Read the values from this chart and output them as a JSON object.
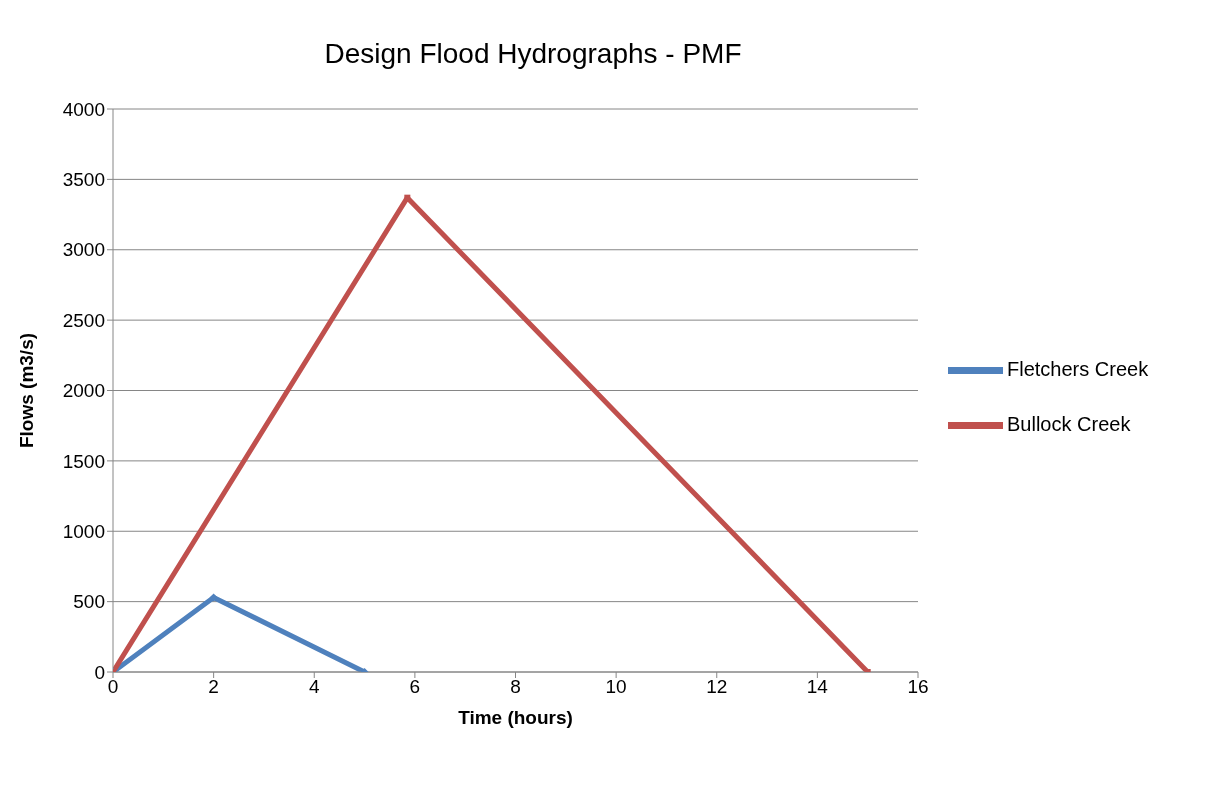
{
  "chart_data": {
    "type": "line",
    "title": "Design Flood Hydrographs - PMF",
    "xlabel": "Time (hours)",
    "ylabel": "Flows (m3/s)",
    "series": [
      {
        "name": "Fletchers Creek",
        "color": "#4f81bd",
        "x": [
          0,
          2,
          5
        ],
        "values": [
          0,
          530,
          0
        ],
        "marker": "diamond"
      },
      {
        "name": "Bullock Creek",
        "color": "#c0504d",
        "x": [
          0,
          5.85,
          15
        ],
        "values": [
          0,
          3370,
          0
        ],
        "marker": "square"
      }
    ],
    "xlim": [
      0,
      16
    ],
    "xticks": [
      0,
      2,
      4,
      6,
      8,
      10,
      12,
      14,
      16
    ],
    "ylim": [
      0,
      4000
    ],
    "yticks": [
      0,
      500,
      1000,
      1500,
      2000,
      2500,
      3000,
      3500,
      4000
    ],
    "grid": "y",
    "legend": "right"
  }
}
